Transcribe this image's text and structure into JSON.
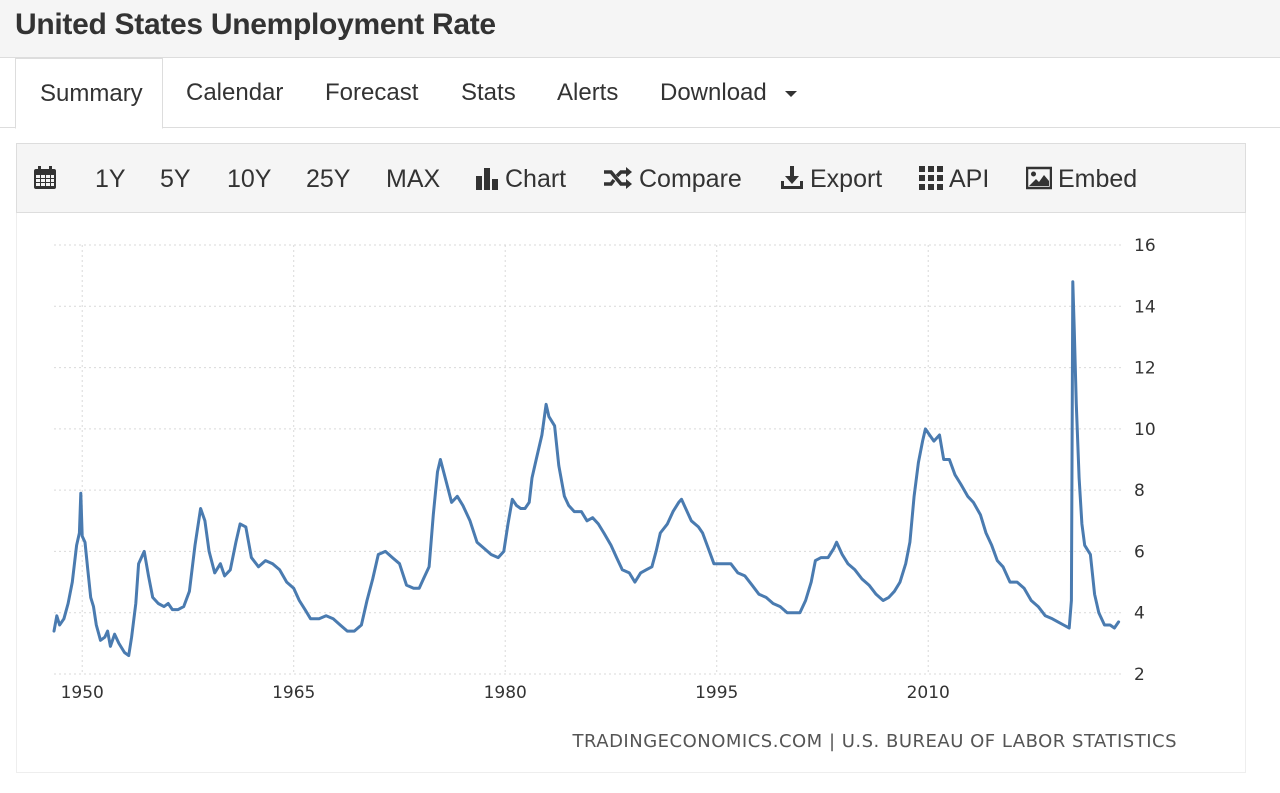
{
  "page": {
    "title": "United States Unemployment Rate"
  },
  "tabs": [
    {
      "label": "Summary"
    },
    {
      "label": "Calendar"
    },
    {
      "label": "Forecast"
    },
    {
      "label": "Stats"
    },
    {
      "label": "Alerts"
    },
    {
      "label": "Download"
    }
  ],
  "toolbar": {
    "ranges": [
      "1Y",
      "5Y",
      "10Y",
      "25Y",
      "MAX"
    ],
    "chart_label": "Chart",
    "compare_label": "Compare",
    "export_label": "Export",
    "api_label": "API",
    "embed_label": "Embed"
  },
  "source": "TRADINGECONOMICS.COM | U.S. BUREAU OF LABOR STATISTICS",
  "colors": {
    "line": "#4a7bb0",
    "grid": "#d9d9d9"
  },
  "chart_data": {
    "type": "line",
    "title": "",
    "xlabel": "",
    "ylabel": "",
    "xlim": [
      1948,
      2023.6
    ],
    "ylim": [
      2,
      16
    ],
    "x_ticks": [
      1950,
      1965,
      1980,
      1995,
      2010
    ],
    "y_ticks": [
      2,
      4,
      6,
      8,
      10,
      12,
      14,
      16
    ],
    "y_axis_position": "right",
    "grid": "dotted",
    "series": [
      {
        "name": "",
        "points": [
          [
            1948.0,
            3.4
          ],
          [
            1948.2,
            3.9
          ],
          [
            1948.4,
            3.6
          ],
          [
            1948.7,
            3.8
          ],
          [
            1949.0,
            4.3
          ],
          [
            1949.3,
            5.0
          ],
          [
            1949.6,
            6.2
          ],
          [
            1949.8,
            6.6
          ],
          [
            1949.9,
            7.9
          ],
          [
            1950.0,
            6.5
          ],
          [
            1950.2,
            6.3
          ],
          [
            1950.4,
            5.4
          ],
          [
            1950.6,
            4.5
          ],
          [
            1950.8,
            4.2
          ],
          [
            1951.0,
            3.6
          ],
          [
            1951.3,
            3.1
          ],
          [
            1951.6,
            3.2
          ],
          [
            1951.8,
            3.4
          ],
          [
            1952.0,
            2.9
          ],
          [
            1952.3,
            3.3
          ],
          [
            1952.6,
            3.0
          ],
          [
            1953.0,
            2.7
          ],
          [
            1953.3,
            2.6
          ],
          [
            1953.5,
            3.2
          ],
          [
            1953.8,
            4.3
          ],
          [
            1954.0,
            5.6
          ],
          [
            1954.4,
            6.0
          ],
          [
            1954.7,
            5.2
          ],
          [
            1955.0,
            4.5
          ],
          [
            1955.4,
            4.3
          ],
          [
            1955.8,
            4.2
          ],
          [
            1956.1,
            4.3
          ],
          [
            1956.4,
            4.1
          ],
          [
            1956.8,
            4.1
          ],
          [
            1957.2,
            4.2
          ],
          [
            1957.6,
            4.7
          ],
          [
            1958.0,
            6.2
          ],
          [
            1958.4,
            7.4
          ],
          [
            1958.7,
            7.0
          ],
          [
            1959.0,
            6.0
          ],
          [
            1959.4,
            5.3
          ],
          [
            1959.8,
            5.6
          ],
          [
            1960.1,
            5.2
          ],
          [
            1960.5,
            5.4
          ],
          [
            1960.9,
            6.3
          ],
          [
            1961.2,
            6.9
          ],
          [
            1961.6,
            6.8
          ],
          [
            1962.0,
            5.8
          ],
          [
            1962.5,
            5.5
          ],
          [
            1963.0,
            5.7
          ],
          [
            1963.5,
            5.6
          ],
          [
            1964.0,
            5.4
          ],
          [
            1964.5,
            5.0
          ],
          [
            1965.0,
            4.8
          ],
          [
            1965.4,
            4.4
          ],
          [
            1965.8,
            4.1
          ],
          [
            1966.2,
            3.8
          ],
          [
            1966.8,
            3.8
          ],
          [
            1967.3,
            3.9
          ],
          [
            1967.8,
            3.8
          ],
          [
            1968.3,
            3.6
          ],
          [
            1968.8,
            3.4
          ],
          [
            1969.3,
            3.4
          ],
          [
            1969.8,
            3.6
          ],
          [
            1970.2,
            4.4
          ],
          [
            1970.6,
            5.1
          ],
          [
            1971.0,
            5.9
          ],
          [
            1971.5,
            6.0
          ],
          [
            1972.0,
            5.8
          ],
          [
            1972.5,
            5.6
          ],
          [
            1973.0,
            4.9
          ],
          [
            1973.5,
            4.8
          ],
          [
            1973.9,
            4.8
          ],
          [
            1974.2,
            5.1
          ],
          [
            1974.6,
            5.5
          ],
          [
            1974.9,
            7.2
          ],
          [
            1975.2,
            8.6
          ],
          [
            1975.4,
            9.0
          ],
          [
            1975.8,
            8.3
          ],
          [
            1976.2,
            7.6
          ],
          [
            1976.6,
            7.8
          ],
          [
            1977.0,
            7.5
          ],
          [
            1977.5,
            7.0
          ],
          [
            1978.0,
            6.3
          ],
          [
            1978.5,
            6.1
          ],
          [
            1979.0,
            5.9
          ],
          [
            1979.5,
            5.8
          ],
          [
            1979.9,
            6.0
          ],
          [
            1980.2,
            6.9
          ],
          [
            1980.5,
            7.7
          ],
          [
            1980.8,
            7.5
          ],
          [
            1981.1,
            7.4
          ],
          [
            1981.4,
            7.4
          ],
          [
            1981.7,
            7.6
          ],
          [
            1981.9,
            8.4
          ],
          [
            1982.2,
            9.0
          ],
          [
            1982.6,
            9.8
          ],
          [
            1982.9,
            10.8
          ],
          [
            1983.1,
            10.4
          ],
          [
            1983.5,
            10.1
          ],
          [
            1983.8,
            8.8
          ],
          [
            1984.2,
            7.8
          ],
          [
            1984.5,
            7.5
          ],
          [
            1984.9,
            7.3
          ],
          [
            1985.4,
            7.3
          ],
          [
            1985.8,
            7.0
          ],
          [
            1986.2,
            7.1
          ],
          [
            1986.6,
            6.9
          ],
          [
            1987.0,
            6.6
          ],
          [
            1987.5,
            6.2
          ],
          [
            1987.9,
            5.8
          ],
          [
            1988.3,
            5.4
          ],
          [
            1988.8,
            5.3
          ],
          [
            1989.2,
            5.0
          ],
          [
            1989.6,
            5.3
          ],
          [
            1990.0,
            5.4
          ],
          [
            1990.4,
            5.5
          ],
          [
            1990.7,
            6.0
          ],
          [
            1991.0,
            6.6
          ],
          [
            1991.5,
            6.9
          ],
          [
            1991.9,
            7.3
          ],
          [
            1992.3,
            7.6
          ],
          [
            1992.5,
            7.7
          ],
          [
            1992.8,
            7.4
          ],
          [
            1993.2,
            7.0
          ],
          [
            1993.7,
            6.8
          ],
          [
            1994.0,
            6.6
          ],
          [
            1994.4,
            6.1
          ],
          [
            1994.8,
            5.6
          ],
          [
            1995.2,
            5.6
          ],
          [
            1995.6,
            5.6
          ],
          [
            1996.0,
            5.6
          ],
          [
            1996.5,
            5.3
          ],
          [
            1997.0,
            5.2
          ],
          [
            1997.5,
            4.9
          ],
          [
            1998.0,
            4.6
          ],
          [
            1998.5,
            4.5
          ],
          [
            1999.0,
            4.3
          ],
          [
            1999.5,
            4.2
          ],
          [
            2000.0,
            4.0
          ],
          [
            2000.5,
            4.0
          ],
          [
            2000.9,
            4.0
          ],
          [
            2001.3,
            4.4
          ],
          [
            2001.7,
            5.0
          ],
          [
            2002.0,
            5.7
          ],
          [
            2002.4,
            5.8
          ],
          [
            2002.9,
            5.8
          ],
          [
            2003.3,
            6.1
          ],
          [
            2003.5,
            6.3
          ],
          [
            2003.9,
            5.9
          ],
          [
            2004.3,
            5.6
          ],
          [
            2004.8,
            5.4
          ],
          [
            2005.3,
            5.1
          ],
          [
            2005.8,
            4.9
          ],
          [
            2006.3,
            4.6
          ],
          [
            2006.8,
            4.4
          ],
          [
            2007.2,
            4.5
          ],
          [
            2007.6,
            4.7
          ],
          [
            2008.0,
            5.0
          ],
          [
            2008.4,
            5.6
          ],
          [
            2008.7,
            6.3
          ],
          [
            2009.0,
            7.8
          ],
          [
            2009.3,
            8.9
          ],
          [
            2009.6,
            9.6
          ],
          [
            2009.8,
            10.0
          ],
          [
            2010.1,
            9.8
          ],
          [
            2010.4,
            9.6
          ],
          [
            2010.8,
            9.8
          ],
          [
            2011.1,
            9.0
          ],
          [
            2011.5,
            9.0
          ],
          [
            2011.9,
            8.5
          ],
          [
            2012.3,
            8.2
          ],
          [
            2012.8,
            7.8
          ],
          [
            2013.2,
            7.6
          ],
          [
            2013.7,
            7.2
          ],
          [
            2014.1,
            6.6
          ],
          [
            2014.5,
            6.2
          ],
          [
            2014.9,
            5.7
          ],
          [
            2015.3,
            5.5
          ],
          [
            2015.8,
            5.0
          ],
          [
            2016.3,
            5.0
          ],
          [
            2016.8,
            4.8
          ],
          [
            2017.3,
            4.4
          ],
          [
            2017.8,
            4.2
          ],
          [
            2018.3,
            3.9
          ],
          [
            2018.8,
            3.8
          ],
          [
            2019.2,
            3.7
          ],
          [
            2019.6,
            3.6
          ],
          [
            2020.0,
            3.5
          ],
          [
            2020.15,
            4.4
          ],
          [
            2020.25,
            14.8
          ],
          [
            2020.35,
            13.3
          ],
          [
            2020.5,
            10.8
          ],
          [
            2020.7,
            8.4
          ],
          [
            2020.9,
            6.9
          ],
          [
            2021.1,
            6.2
          ],
          [
            2021.5,
            5.9
          ],
          [
            2021.8,
            4.6
          ],
          [
            2022.1,
            4.0
          ],
          [
            2022.5,
            3.6
          ],
          [
            2022.9,
            3.6
          ],
          [
            2023.2,
            3.5
          ],
          [
            2023.5,
            3.7
          ]
        ]
      }
    ]
  }
}
